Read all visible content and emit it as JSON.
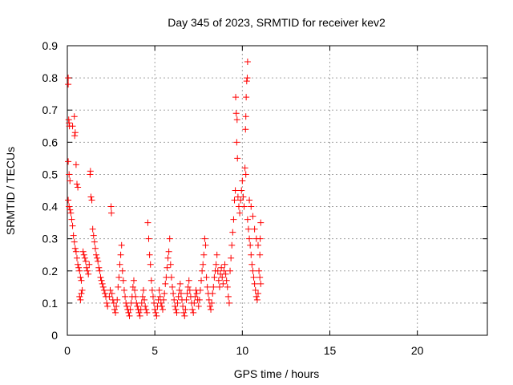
{
  "chart_data": {
    "type": "scatter",
    "title": "Day 345 of 2023, SRMTID for receiver kev2",
    "xlabel": "GPS time / hours",
    "ylabel": "SRMTID / TECUs",
    "xlim": [
      0,
      24
    ],
    "ylim": [
      0,
      0.9
    ],
    "x_ticks": [
      0,
      5,
      10,
      15,
      20
    ],
    "x_tick_labels": [
      "0",
      "5",
      "10",
      "15",
      "20"
    ],
    "y_ticks": [
      0,
      0.1,
      0.2,
      0.3,
      0.4,
      0.5,
      0.6,
      0.7,
      0.8,
      0.9
    ],
    "y_tick_labels": [
      "0",
      "0.1",
      "0.2",
      "0.3",
      "0.4",
      "0.5",
      "0.6",
      "0.7",
      "0.8",
      "0.9"
    ],
    "grid": true,
    "marker": "+",
    "series": [
      {
        "name": "kev2",
        "color": "#ff0000",
        "points": [
          [
            0.05,
            0.8
          ],
          [
            0.05,
            0.78
          ],
          [
            0.08,
            0.67
          ],
          [
            0.1,
            0.66
          ],
          [
            0.12,
            0.65
          ],
          [
            0.4,
            0.68
          ],
          [
            0.45,
            0.63
          ],
          [
            0.42,
            0.62
          ],
          [
            0.3,
            0.65
          ],
          [
            0.05,
            0.54
          ],
          [
            0.1,
            0.5
          ],
          [
            0.15,
            0.48
          ],
          [
            0.5,
            0.53
          ],
          [
            0.55,
            0.47
          ],
          [
            0.6,
            0.46
          ],
          [
            0.05,
            0.42
          ],
          [
            0.1,
            0.4
          ],
          [
            0.15,
            0.39
          ],
          [
            0.2,
            0.38
          ],
          [
            0.25,
            0.36
          ],
          [
            0.3,
            0.34
          ],
          [
            0.35,
            0.31
          ],
          [
            0.4,
            0.29
          ],
          [
            0.45,
            0.27
          ],
          [
            0.5,
            0.26
          ],
          [
            0.55,
            0.24
          ],
          [
            0.6,
            0.22
          ],
          [
            0.65,
            0.21
          ],
          [
            0.7,
            0.2
          ],
          [
            0.75,
            0.18
          ],
          [
            0.8,
            0.17
          ],
          [
            0.85,
            0.14
          ],
          [
            0.7,
            0.12
          ],
          [
            0.75,
            0.11
          ],
          [
            0.8,
            0.13
          ],
          [
            0.9,
            0.26
          ],
          [
            0.95,
            0.25
          ],
          [
            1.0,
            0.24
          ],
          [
            1.05,
            0.23
          ],
          [
            1.1,
            0.21
          ],
          [
            1.15,
            0.2
          ],
          [
            1.2,
            0.19
          ],
          [
            1.25,
            0.22
          ],
          [
            1.3,
            0.5
          ],
          [
            1.32,
            0.51
          ],
          [
            1.35,
            0.43
          ],
          [
            1.4,
            0.42
          ],
          [
            1.45,
            0.33
          ],
          [
            1.5,
            0.31
          ],
          [
            1.55,
            0.29
          ],
          [
            1.6,
            0.27
          ],
          [
            1.65,
            0.25
          ],
          [
            1.7,
            0.24
          ],
          [
            1.75,
            0.23
          ],
          [
            1.8,
            0.21
          ],
          [
            1.85,
            0.2
          ],
          [
            1.9,
            0.18
          ],
          [
            1.95,
            0.17
          ],
          [
            2.0,
            0.16
          ],
          [
            2.05,
            0.15
          ],
          [
            2.1,
            0.14
          ],
          [
            2.15,
            0.13
          ],
          [
            2.2,
            0.12
          ],
          [
            2.25,
            0.1
          ],
          [
            2.3,
            0.09
          ],
          [
            2.4,
            0.12
          ],
          [
            2.45,
            0.14
          ],
          [
            2.5,
            0.4
          ],
          [
            2.52,
            0.38
          ],
          [
            2.55,
            0.13
          ],
          [
            2.6,
            0.11
          ],
          [
            2.65,
            0.1
          ],
          [
            2.7,
            0.08
          ],
          [
            2.75,
            0.07
          ],
          [
            2.8,
            0.09
          ],
          [
            2.85,
            0.11
          ],
          [
            2.9,
            0.15
          ],
          [
            2.95,
            0.18
          ],
          [
            3.0,
            0.22
          ],
          [
            3.05,
            0.25
          ],
          [
            3.1,
            0.28
          ],
          [
            3.15,
            0.2
          ],
          [
            3.2,
            0.17
          ],
          [
            3.25,
            0.14
          ],
          [
            3.3,
            0.12
          ],
          [
            3.35,
            0.1
          ],
          [
            3.4,
            0.09
          ],
          [
            3.45,
            0.08
          ],
          [
            3.5,
            0.07
          ],
          [
            3.55,
            0.06
          ],
          [
            3.6,
            0.08
          ],
          [
            3.65,
            0.1
          ],
          [
            3.7,
            0.12
          ],
          [
            3.75,
            0.15
          ],
          [
            3.8,
            0.17
          ],
          [
            3.85,
            0.14
          ],
          [
            3.9,
            0.12
          ],
          [
            3.95,
            0.1
          ],
          [
            4.0,
            0.09
          ],
          [
            4.05,
            0.08
          ],
          [
            4.1,
            0.07
          ],
          [
            4.15,
            0.06
          ],
          [
            4.2,
            0.08
          ],
          [
            4.25,
            0.1
          ],
          [
            4.3,
            0.12
          ],
          [
            4.35,
            0.14
          ],
          [
            4.4,
            0.11
          ],
          [
            4.45,
            0.09
          ],
          [
            4.5,
            0.08
          ],
          [
            4.55,
            0.07
          ],
          [
            4.6,
            0.35
          ],
          [
            4.65,
            0.3
          ],
          [
            4.7,
            0.25
          ],
          [
            4.75,
            0.22
          ],
          [
            4.8,
            0.17
          ],
          [
            4.85,
            0.14
          ],
          [
            4.9,
            0.12
          ],
          [
            4.95,
            0.1
          ],
          [
            5.0,
            0.08
          ],
          [
            5.05,
            0.07
          ],
          [
            5.1,
            0.06
          ],
          [
            5.15,
            0.09
          ],
          [
            5.2,
            0.11
          ],
          [
            5.25,
            0.14
          ],
          [
            5.3,
            0.12
          ],
          [
            5.35,
            0.1
          ],
          [
            5.4,
            0.09
          ],
          [
            5.45,
            0.08
          ],
          [
            5.5,
            0.11
          ],
          [
            5.55,
            0.13
          ],
          [
            5.6,
            0.16
          ],
          [
            5.65,
            0.18
          ],
          [
            5.7,
            0.21
          ],
          [
            5.75,
            0.24
          ],
          [
            5.8,
            0.26
          ],
          [
            5.85,
            0.3
          ],
          [
            5.9,
            0.22
          ],
          [
            5.95,
            0.18
          ],
          [
            6.0,
            0.15
          ],
          [
            6.05,
            0.13
          ],
          [
            6.1,
            0.11
          ],
          [
            6.15,
            0.09
          ],
          [
            6.2,
            0.08
          ],
          [
            6.25,
            0.07
          ],
          [
            6.3,
            0.1
          ],
          [
            6.35,
            0.12
          ],
          [
            6.4,
            0.14
          ],
          [
            6.45,
            0.16
          ],
          [
            6.5,
            0.13
          ],
          [
            6.55,
            0.11
          ],
          [
            6.6,
            0.09
          ],
          [
            6.65,
            0.07
          ],
          [
            6.7,
            0.06
          ],
          [
            6.75,
            0.08
          ],
          [
            6.8,
            0.11
          ],
          [
            6.85,
            0.13
          ],
          [
            6.9,
            0.15
          ],
          [
            6.95,
            0.17
          ],
          [
            7.0,
            0.14
          ],
          [
            7.05,
            0.12
          ],
          [
            7.1,
            0.1
          ],
          [
            7.15,
            0.08
          ],
          [
            7.2,
            0.07
          ],
          [
            7.25,
            0.1
          ],
          [
            7.3,
            0.12
          ],
          [
            7.35,
            0.14
          ],
          [
            7.4,
            0.13
          ],
          [
            7.45,
            0.11
          ],
          [
            7.5,
            0.09
          ],
          [
            7.55,
            0.11
          ],
          [
            7.6,
            0.14
          ],
          [
            7.65,
            0.17
          ],
          [
            7.7,
            0.2
          ],
          [
            7.75,
            0.22
          ],
          [
            7.8,
            0.25
          ],
          [
            7.85,
            0.3
          ],
          [
            7.9,
            0.28
          ],
          [
            7.95,
            0.18
          ],
          [
            8.0,
            0.15
          ],
          [
            8.05,
            0.13
          ],
          [
            8.1,
            0.11
          ],
          [
            8.15,
            0.09
          ],
          [
            8.2,
            0.08
          ],
          [
            8.25,
            0.1
          ],
          [
            8.3,
            0.13
          ],
          [
            8.35,
            0.15
          ],
          [
            8.4,
            0.18
          ],
          [
            8.45,
            0.2
          ],
          [
            8.5,
            0.22
          ],
          [
            8.55,
            0.25
          ],
          [
            8.6,
            0.2
          ],
          [
            8.65,
            0.17
          ],
          [
            8.7,
            0.15
          ],
          [
            8.75,
            0.19
          ],
          [
            8.8,
            0.21
          ],
          [
            8.85,
            0.18
          ],
          [
            8.9,
            0.16
          ],
          [
            8.95,
            0.2
          ],
          [
            9.0,
            0.22
          ],
          [
            9.05,
            0.19
          ],
          [
            9.1,
            0.17
          ],
          [
            9.15,
            0.15
          ],
          [
            9.2,
            0.12
          ],
          [
            9.25,
            0.1
          ],
          [
            9.3,
            0.2
          ],
          [
            9.35,
            0.24
          ],
          [
            9.4,
            0.28
          ],
          [
            9.45,
            0.32
          ],
          [
            9.5,
            0.36
          ],
          [
            9.55,
            0.42
          ],
          [
            9.6,
            0.45
          ],
          [
            9.62,
            0.74
          ],
          [
            9.65,
            0.69
          ],
          [
            9.7,
            0.67
          ],
          [
            9.68,
            0.6
          ],
          [
            9.72,
            0.55
          ],
          [
            9.75,
            0.43
          ],
          [
            9.8,
            0.4
          ],
          [
            9.85,
            0.38
          ],
          [
            9.9,
            0.42
          ],
          [
            9.95,
            0.45
          ],
          [
            10.0,
            0.48
          ],
          [
            10.05,
            0.43
          ],
          [
            10.1,
            0.4
          ],
          [
            10.15,
            0.52
          ],
          [
            10.2,
            0.5
          ],
          [
            10.18,
            0.64
          ],
          [
            10.2,
            0.68
          ],
          [
            10.22,
            0.74
          ],
          [
            10.25,
            0.79
          ],
          [
            10.28,
            0.8
          ],
          [
            10.3,
            0.85
          ],
          [
            10.3,
            0.36
          ],
          [
            10.35,
            0.33
          ],
          [
            10.4,
            0.3
          ],
          [
            10.45,
            0.28
          ],
          [
            10.5,
            0.25
          ],
          [
            10.55,
            0.22
          ],
          [
            10.6,
            0.2
          ],
          [
            10.65,
            0.18
          ],
          [
            10.7,
            0.16
          ],
          [
            10.75,
            0.14
          ],
          [
            10.8,
            0.12
          ],
          [
            10.85,
            0.11
          ],
          [
            10.9,
            0.13
          ],
          [
            10.95,
            0.2
          ],
          [
            11.0,
            0.25
          ],
          [
            11.02,
            0.3
          ],
          [
            11.05,
            0.35
          ],
          [
            10.4,
            0.42
          ],
          [
            10.5,
            0.4
          ],
          [
            10.6,
            0.37
          ],
          [
            10.7,
            0.33
          ],
          [
            10.8,
            0.3
          ],
          [
            10.9,
            0.28
          ],
          [
            11.0,
            0.18
          ],
          [
            11.05,
            0.16
          ]
        ]
      }
    ]
  }
}
